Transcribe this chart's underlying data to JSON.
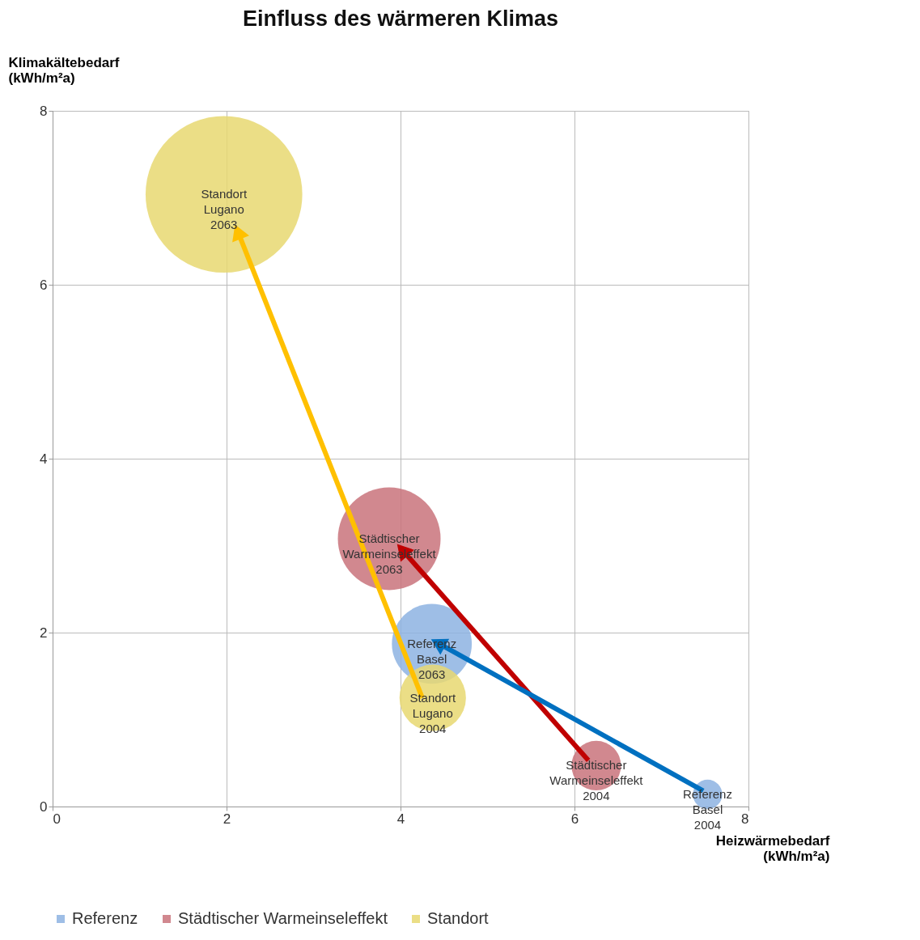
{
  "chart_data": {
    "type": "bubble",
    "title": "Einfluss des wärmeren Klimas",
    "xlabel": "Heizwärmebedarf (kWh/m²a)",
    "ylabel": "Klimakältebedarf (kWh/m²a)",
    "xlim": [
      0,
      8
    ],
    "xticks": [
      0,
      2,
      4,
      6,
      8
    ],
    "ylim": [
      0,
      8
    ],
    "yticks": [
      0,
      2,
      4,
      6,
      8
    ],
    "grid": true,
    "legend": "bottom",
    "series": [
      {
        "name": "Referenz",
        "color": "#8db3e2",
        "x": [
          7.53,
          4.36
        ],
        "values": [
          0.14,
          1.87
        ],
        "sizes": [
          0.035,
          0.26
        ]
      },
      {
        "name": "Städtischer Warmeinseleffekt",
        "color": "#c9737b",
        "x": [
          6.25,
          3.87
        ],
        "values": [
          0.47,
          3.08
        ],
        "sizes": [
          0.1,
          0.43
        ]
      },
      {
        "name": "Standort",
        "color": "#e8d871",
        "x": [
          4.37,
          1.97
        ],
        "values": [
          1.25,
          7.04
        ],
        "sizes": [
          0.18,
          1
        ]
      },
      {
        "type": "line",
        "marker": "triangle",
        "color": "#ffc000",
        "x": [
          4.25,
          2.13
        ],
        "values": [
          1.25,
          6.61
        ]
      },
      {
        "type": "line",
        "marker": "triangle",
        "color": "#c00000",
        "x": [
          6.16,
          4.02
        ],
        "values": [
          0.53,
          2.95
        ]
      },
      {
        "type": "line",
        "marker": "triangle",
        "color": "#0070c0",
        "x": [
          7.48,
          4.43
        ],
        "values": [
          0.18,
          1.88
        ]
      }
    ],
    "annotations": [
      {
        "text": "Standort Lugano 2063",
        "x": 1.97,
        "y": 7.04
      },
      {
        "text": "Städtischer Warmeinseleffekt 2063",
        "x": 3.87,
        "y": 3.08
      },
      {
        "text": "Referenz Basel 2063",
        "x": 4.36,
        "y": 1.87
      },
      {
        "text": "Standort Lugano 2004",
        "x": 4.37,
        "y": 1.25
      },
      {
        "text": "Städtischer Warmeinseleffekt 2004",
        "x": 6.25,
        "y": 0.47
      },
      {
        "text": "Referenz Basel 2004",
        "x": 7.53,
        "y": 0.14
      }
    ]
  }
}
